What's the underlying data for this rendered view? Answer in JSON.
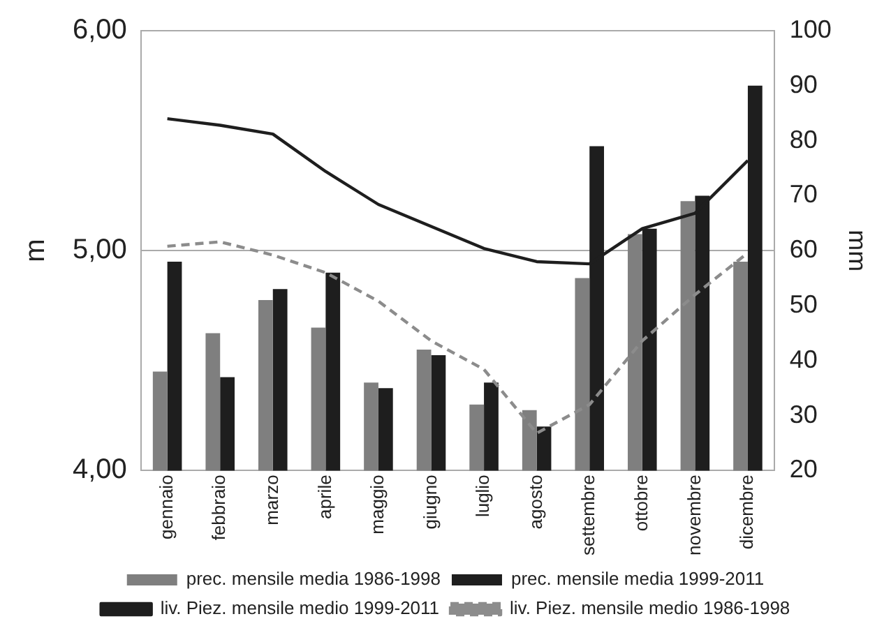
{
  "chart_data": {
    "type": "bar",
    "ylabel": "m",
    "y2label": "mm",
    "categories": [
      "gennaio",
      "febbraio",
      "marzo",
      "aprile",
      "maggio",
      "giugno",
      "luglio",
      "agosto",
      "settembre",
      "ottobre",
      "novembre",
      "dicembre"
    ],
    "series": [
      {
        "name": "prec. mensile media 1986-1998",
        "axis": "y2",
        "color": "#7f7f7f",
        "values": [
          38,
          45,
          51,
          46,
          36,
          42,
          32,
          31,
          55,
          63,
          69,
          58
        ]
      },
      {
        "name": "prec. mensile media 1999-2011",
        "axis": "y2",
        "color": "#1e1e1e",
        "values": [
          58,
          37,
          53,
          56,
          35,
          41,
          36,
          28,
          79,
          64,
          70,
          90
        ]
      },
      {
        "name": "liv. Piez. mensile medio 1999-2011",
        "type": "line",
        "axis": "y",
        "color": "#1e1e1e",
        "line_style": "solid",
        "values": [
          5.6,
          5.57,
          5.53,
          5.36,
          5.21,
          5.11,
          5.01,
          4.95,
          4.94,
          5.1,
          5.17,
          5.41
        ]
      },
      {
        "name": "liv. Piez. mensile medio 1986-1998",
        "type": "line",
        "axis": "y",
        "color": "#8c8c8c",
        "line_style": "dashed",
        "values": [
          5.02,
          5.04,
          4.98,
          4.9,
          4.77,
          4.59,
          4.46,
          4.17,
          4.3,
          4.59,
          4.8,
          4.99
        ]
      }
    ],
    "ylim": [
      4,
      6
    ],
    "yticks": [
      {
        "value": 4,
        "label": "4,00"
      },
      {
        "value": 5,
        "label": "5,00"
      },
      {
        "value": 6,
        "label": "6,00"
      }
    ],
    "y2lim": [
      20,
      100
    ],
    "y2ticks": [
      20,
      30,
      40,
      50,
      60,
      70,
      80,
      90,
      100
    ],
    "grid": "y",
    "legend": "bottom",
    "marker": "none"
  }
}
